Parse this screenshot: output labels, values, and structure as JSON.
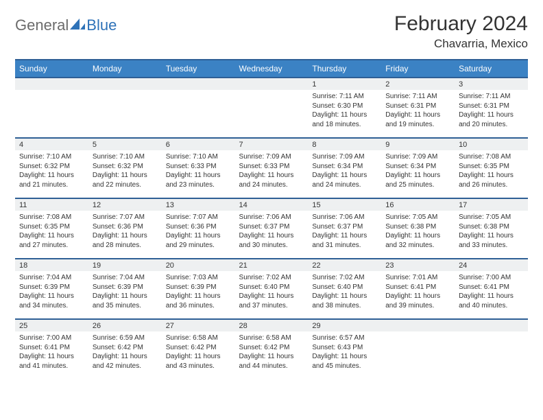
{
  "brand": {
    "word1": "General",
    "word2": "Blue",
    "icon_color": "#2e72b8"
  },
  "header": {
    "month_title": "February 2024",
    "location": "Chavarria, Mexico"
  },
  "theme": {
    "header_bg": "#3b82c4",
    "header_border": "#2e5f95",
    "daynum_bg": "#eef0f1",
    "page_bg": "#ffffff",
    "text_color": "#333333"
  },
  "calendar": {
    "day_headers": [
      "Sunday",
      "Monday",
      "Tuesday",
      "Wednesday",
      "Thursday",
      "Friday",
      "Saturday"
    ],
    "weeks": [
      [
        null,
        null,
        null,
        null,
        {
          "n": "1",
          "sunrise": "7:11 AM",
          "sunset": "6:30 PM",
          "daylight": "11 hours and 18 minutes."
        },
        {
          "n": "2",
          "sunrise": "7:11 AM",
          "sunset": "6:31 PM",
          "daylight": "11 hours and 19 minutes."
        },
        {
          "n": "3",
          "sunrise": "7:11 AM",
          "sunset": "6:31 PM",
          "daylight": "11 hours and 20 minutes."
        }
      ],
      [
        {
          "n": "4",
          "sunrise": "7:10 AM",
          "sunset": "6:32 PM",
          "daylight": "11 hours and 21 minutes."
        },
        {
          "n": "5",
          "sunrise": "7:10 AM",
          "sunset": "6:32 PM",
          "daylight": "11 hours and 22 minutes."
        },
        {
          "n": "6",
          "sunrise": "7:10 AM",
          "sunset": "6:33 PM",
          "daylight": "11 hours and 23 minutes."
        },
        {
          "n": "7",
          "sunrise": "7:09 AM",
          "sunset": "6:33 PM",
          "daylight": "11 hours and 24 minutes."
        },
        {
          "n": "8",
          "sunrise": "7:09 AM",
          "sunset": "6:34 PM",
          "daylight": "11 hours and 24 minutes."
        },
        {
          "n": "9",
          "sunrise": "7:09 AM",
          "sunset": "6:34 PM",
          "daylight": "11 hours and 25 minutes."
        },
        {
          "n": "10",
          "sunrise": "7:08 AM",
          "sunset": "6:35 PM",
          "daylight": "11 hours and 26 minutes."
        }
      ],
      [
        {
          "n": "11",
          "sunrise": "7:08 AM",
          "sunset": "6:35 PM",
          "daylight": "11 hours and 27 minutes."
        },
        {
          "n": "12",
          "sunrise": "7:07 AM",
          "sunset": "6:36 PM",
          "daylight": "11 hours and 28 minutes."
        },
        {
          "n": "13",
          "sunrise": "7:07 AM",
          "sunset": "6:36 PM",
          "daylight": "11 hours and 29 minutes."
        },
        {
          "n": "14",
          "sunrise": "7:06 AM",
          "sunset": "6:37 PM",
          "daylight": "11 hours and 30 minutes."
        },
        {
          "n": "15",
          "sunrise": "7:06 AM",
          "sunset": "6:37 PM",
          "daylight": "11 hours and 31 minutes."
        },
        {
          "n": "16",
          "sunrise": "7:05 AM",
          "sunset": "6:38 PM",
          "daylight": "11 hours and 32 minutes."
        },
        {
          "n": "17",
          "sunrise": "7:05 AM",
          "sunset": "6:38 PM",
          "daylight": "11 hours and 33 minutes."
        }
      ],
      [
        {
          "n": "18",
          "sunrise": "7:04 AM",
          "sunset": "6:39 PM",
          "daylight": "11 hours and 34 minutes."
        },
        {
          "n": "19",
          "sunrise": "7:04 AM",
          "sunset": "6:39 PM",
          "daylight": "11 hours and 35 minutes."
        },
        {
          "n": "20",
          "sunrise": "7:03 AM",
          "sunset": "6:39 PM",
          "daylight": "11 hours and 36 minutes."
        },
        {
          "n": "21",
          "sunrise": "7:02 AM",
          "sunset": "6:40 PM",
          "daylight": "11 hours and 37 minutes."
        },
        {
          "n": "22",
          "sunrise": "7:02 AM",
          "sunset": "6:40 PM",
          "daylight": "11 hours and 38 minutes."
        },
        {
          "n": "23",
          "sunrise": "7:01 AM",
          "sunset": "6:41 PM",
          "daylight": "11 hours and 39 minutes."
        },
        {
          "n": "24",
          "sunrise": "7:00 AM",
          "sunset": "6:41 PM",
          "daylight": "11 hours and 40 minutes."
        }
      ],
      [
        {
          "n": "25",
          "sunrise": "7:00 AM",
          "sunset": "6:41 PM",
          "daylight": "11 hours and 41 minutes."
        },
        {
          "n": "26",
          "sunrise": "6:59 AM",
          "sunset": "6:42 PM",
          "daylight": "11 hours and 42 minutes."
        },
        {
          "n": "27",
          "sunrise": "6:58 AM",
          "sunset": "6:42 PM",
          "daylight": "11 hours and 43 minutes."
        },
        {
          "n": "28",
          "sunrise": "6:58 AM",
          "sunset": "6:42 PM",
          "daylight": "11 hours and 44 minutes."
        },
        {
          "n": "29",
          "sunrise": "6:57 AM",
          "sunset": "6:43 PM",
          "daylight": "11 hours and 45 minutes."
        },
        null,
        null
      ]
    ],
    "labels": {
      "sunrise_prefix": "Sunrise: ",
      "sunset_prefix": "Sunset: ",
      "daylight_prefix": "Daylight: "
    }
  }
}
